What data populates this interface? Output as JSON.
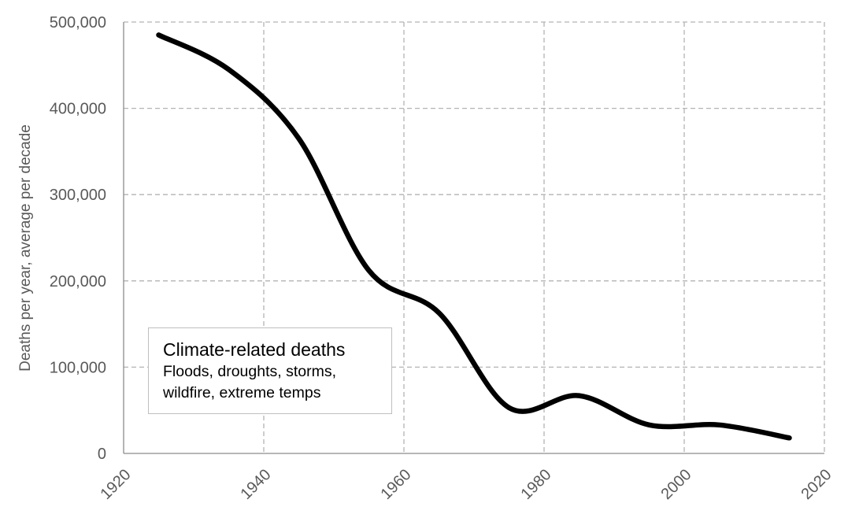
{
  "chart_data": {
    "type": "line",
    "ylabel": "Deaths per year, average per decade",
    "xlim": [
      1920,
      2020
    ],
    "ylim": [
      0,
      500000
    ],
    "x_ticks": [
      1920,
      1940,
      1960,
      1980,
      2000,
      2020
    ],
    "y_ticks": [
      0,
      100000,
      200000,
      300000,
      400000,
      500000
    ],
    "x_tick_labels": [
      "1920",
      "1940",
      "1960",
      "1980",
      "2000",
      "2020"
    ],
    "y_tick_labels": [
      "0",
      "100,000",
      "200,000",
      "300,000",
      "400,000",
      "500,000"
    ],
    "grid": true,
    "series": [
      {
        "name": "Climate-related deaths",
        "color": "#000000",
        "x": [
          1925,
          1935,
          1945,
          1955,
          1965,
          1975,
          1985,
          1995,
          2005,
          2015
        ],
        "values": [
          485000,
          445000,
          365000,
          212000,
          163000,
          53000,
          67000,
          33000,
          33000,
          18000
        ]
      }
    ],
    "legend": {
      "position": "bottom-left",
      "title": "Climate-related deaths",
      "line1": "Floods, droughts, storms,",
      "line2": "wildfire, extreme temps"
    }
  }
}
